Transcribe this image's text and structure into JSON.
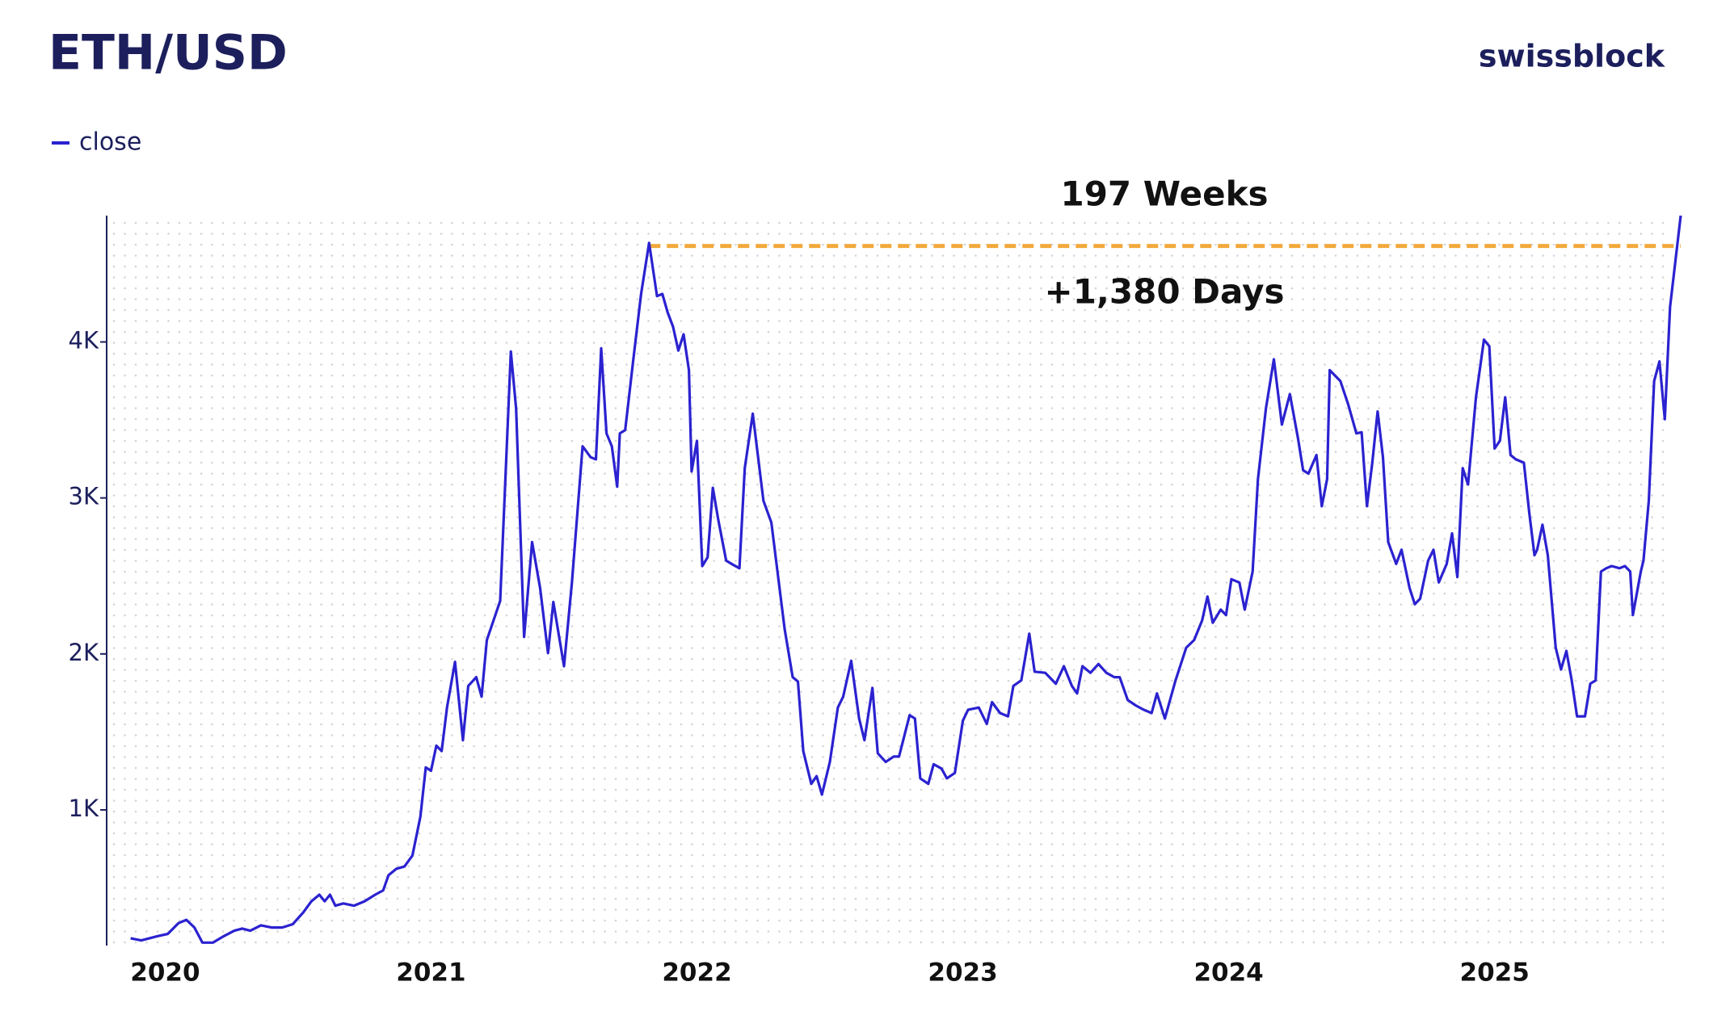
{
  "chart_data": {
    "type": "line",
    "title": "ETH/USD",
    "brand": "swissblock",
    "annotations": [
      "197 Weeks",
      "+1,380 Days"
    ],
    "reference_line": {
      "y": 4615,
      "x": [
        2021.82,
        2025.7
      ],
      "color": "#f2a93b"
    },
    "x": [
      2019.87,
      2019.91,
      2019.97,
      2020.01,
      2020.05,
      2020.08,
      2020.11,
      2020.14,
      2020.18,
      2020.22,
      2020.26,
      2020.29,
      2020.32,
      2020.36,
      2020.4,
      2020.44,
      2020.48,
      2020.52,
      2020.55,
      2020.58,
      2020.6,
      2020.62,
      2020.64,
      2020.67,
      2020.71,
      2020.75,
      2020.79,
      2020.82,
      2020.84,
      2020.87,
      2020.9,
      2020.93,
      2020.96,
      2020.98,
      2021.0,
      2021.02,
      2021.04,
      2021.06,
      2021.09,
      2021.12,
      2021.14,
      2021.17,
      2021.19,
      2021.21,
      2021.26,
      2021.3,
      2021.32,
      2021.35,
      2021.38,
      2021.41,
      2021.44,
      2021.46,
      2021.5,
      2021.53,
      2021.57,
      2021.6,
      2021.62,
      2021.64,
      2021.66,
      2021.68,
      2021.7,
      2021.71,
      2021.73,
      2021.76,
      2021.79,
      2021.82,
      2021.85,
      2021.87,
      2021.89,
      2021.91,
      2021.93,
      2021.95,
      2021.97,
      2021.98,
      2022.0,
      2022.02,
      2022.04,
      2022.06,
      2022.08,
      2022.11,
      2022.13,
      2022.16,
      2022.18,
      2022.21,
      2022.23,
      2022.25,
      2022.28,
      2022.33,
      2022.36,
      2022.38,
      2022.4,
      2022.43,
      2022.45,
      2022.47,
      2022.5,
      2022.53,
      2022.55,
      2022.58,
      2022.61,
      2022.63,
      2022.66,
      2022.68,
      2022.71,
      2022.74,
      2022.76,
      2022.8,
      2022.82,
      2022.84,
      2022.87,
      2022.89,
      2022.92,
      2022.94,
      2022.97,
      2023.0,
      2023.02,
      2023.06,
      2023.09,
      2023.11,
      2023.14,
      2023.17,
      2023.19,
      2023.22,
      2023.25,
      2023.27,
      2023.31,
      2023.35,
      2023.38,
      2023.41,
      2023.43,
      2023.45,
      2023.48,
      2023.51,
      2023.54,
      2023.57,
      2023.59,
      2023.62,
      2023.65,
      2023.68,
      2023.71,
      2023.73,
      2023.76,
      2023.8,
      2023.84,
      2023.87,
      2023.9,
      2023.92,
      2023.94,
      2023.97,
      2023.99,
      2024.01,
      2024.04,
      2024.06,
      2024.09,
      2024.11,
      2024.14,
      2024.17,
      2024.2,
      2024.23,
      2024.26,
      2024.28,
      2024.3,
      2024.33,
      2024.35,
      2024.37,
      2024.38,
      2024.42,
      2024.45,
      2024.48,
      2024.5,
      2024.52,
      2024.54,
      2024.56,
      2024.58,
      2024.6,
      2024.63,
      2024.65,
      2024.68,
      2024.7,
      2024.72,
      2024.75,
      2024.77,
      2024.79,
      2024.82,
      2024.84,
      2024.86,
      2024.88,
      2024.9,
      2024.93,
      2024.96,
      2024.98,
      2025.0,
      2025.02,
      2025.04,
      2025.06,
      2025.08,
      2025.11,
      2025.13,
      2025.15,
      2025.16,
      2025.18,
      2025.2,
      2025.23,
      2025.25,
      2025.27,
      2025.29,
      2025.31,
      2025.34,
      2025.36,
      2025.38,
      2025.4,
      2025.42,
      2025.44,
      2025.47,
      2025.49,
      2025.51,
      2025.52,
      2025.55,
      2025.56,
      2025.58,
      2025.6,
      2025.62,
      2025.64,
      2025.66,
      2025.68,
      2025.7
    ],
    "series": [
      {
        "name": "close",
        "color": "#2b22d0",
        "values": [
          177,
          163,
          190,
          205,
          274,
          295,
          246,
          149,
          149,
          190,
          225,
          239,
          225,
          260,
          246,
          246,
          267,
          344,
          414,
          456,
          414,
          456,
          386,
          400,
          386,
          414,
          456,
          484,
          581,
          623,
          637,
          707,
          958,
          1272,
          1251,
          1412,
          1377,
          1656,
          1949,
          1447,
          1795,
          1851,
          1726,
          2089,
          2340,
          3938,
          3575,
          2109,
          2717,
          2423,
          2005,
          2333,
          1921,
          2458,
          3331,
          3261,
          3247,
          3959,
          3414,
          3331,
          3072,
          3414,
          3435,
          3875,
          4308,
          4635,
          4294,
          4308,
          4189,
          4098,
          3945,
          4049,
          3819,
          3170,
          3366,
          2563,
          2619,
          3065,
          2863,
          2598,
          2577,
          2549,
          3191,
          3540,
          3261,
          2982,
          2842,
          2158,
          1851,
          1823,
          1377,
          1167,
          1216,
          1098,
          1307,
          1656,
          1726,
          1956,
          1586,
          1447,
          1782,
          1363,
          1307,
          1342,
          1342,
          1607,
          1586,
          1202,
          1167,
          1293,
          1265,
          1202,
          1237,
          1572,
          1642,
          1656,
          1551,
          1691,
          1621,
          1600,
          1795,
          1830,
          2130,
          1886,
          1879,
          1809,
          1921,
          1795,
          1747,
          1921,
          1879,
          1935,
          1879,
          1851,
          1851,
          1705,
          1670,
          1642,
          1621,
          1747,
          1586,
          1830,
          2040,
          2089,
          2214,
          2368,
          2200,
          2284,
          2249,
          2479,
          2458,
          2284,
          2528,
          3121,
          3575,
          3889,
          3470,
          3666,
          3387,
          3177,
          3156,
          3275,
          2947,
          3121,
          3819,
          3749,
          3596,
          3414,
          3421,
          2947,
          3226,
          3554,
          3261,
          2717,
          2577,
          2668,
          2423,
          2319,
          2354,
          2598,
          2668,
          2458,
          2577,
          2773,
          2493,
          3191,
          3086,
          3645,
          4015,
          3973,
          3317,
          3366,
          3645,
          3275,
          3247,
          3226,
          2912,
          2633,
          2668,
          2828,
          2633,
          2040,
          1900,
          2019,
          1830,
          1600,
          1600,
          1809,
          1830,
          2528,
          2549,
          2563,
          2549,
          2563,
          2528,
          2249,
          2528,
          2598,
          2982,
          3749,
          3875,
          3505,
          4224,
          4517,
          4810
        ]
      }
    ],
    "xlim": [
      2019.78,
      2025.7
    ],
    "xticks": [
      2020,
      2021,
      2022,
      2023,
      2024,
      2025
    ],
    "ylim": [
      130,
      4810
    ],
    "yticks": [
      {
        "value": 1000,
        "label": "1K"
      },
      {
        "value": 2000,
        "label": "2K"
      },
      {
        "value": 3000,
        "label": "3K"
      },
      {
        "value": 4000,
        "label": "4K"
      }
    ],
    "grid": true
  }
}
